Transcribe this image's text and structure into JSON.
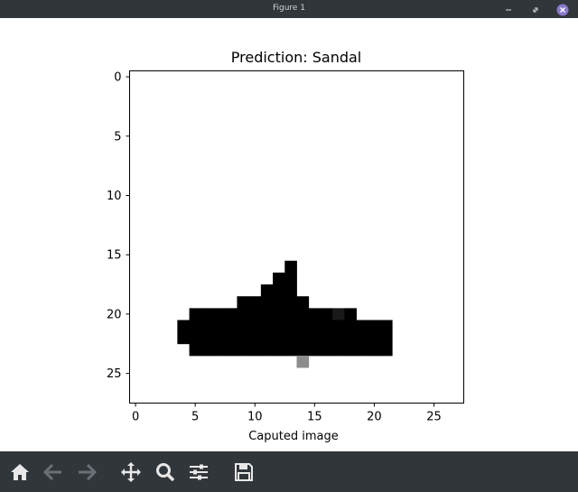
{
  "window": {
    "title": "Figure 1"
  },
  "toolbar": {
    "tools": [
      "home-icon",
      "back-arrow-icon",
      "forward-arrow-icon",
      "pan-move-icon",
      "zoom-magnifier-icon",
      "configure-subplots-icon",
      "save-disk-icon"
    ]
  },
  "colors": {
    "titlebar": "#31363b",
    "toolbar": "#31363b",
    "close": "#8a79c9"
  },
  "chart_data": {
    "type": "heatmap",
    "title": "Prediction: Sandal",
    "xlabel": "Caputed image",
    "ylabel": "",
    "xlim": [
      -0.5,
      27.5
    ],
    "ylim": [
      27.5,
      -0.5
    ],
    "xticks": [
      "0",
      "5",
      "10",
      "15",
      "20",
      "25"
    ],
    "yticks": [
      "0",
      "5",
      "10",
      "15",
      "20",
      "25"
    ],
    "colormap": "gray_r",
    "grid": false,
    "pixels": [
      {
        "row": 16,
        "col_start": 13,
        "col_end": 13,
        "value": 1.0
      },
      {
        "row": 17,
        "col_start": 12,
        "col_end": 13,
        "value": 1.0
      },
      {
        "row": 18,
        "col_start": 11,
        "col_end": 13,
        "value": 1.0
      },
      {
        "row": 19,
        "col_start": 9,
        "col_end": 14,
        "value": 1.0
      },
      {
        "row": 20,
        "col_start": 5,
        "col_end": 16,
        "value": 1.0
      },
      {
        "row": 20,
        "col_start": 17,
        "col_end": 17,
        "value": 0.9
      },
      {
        "row": 20,
        "col_start": 18,
        "col_end": 18,
        "value": 1.0
      },
      {
        "row": 21,
        "col_start": 4,
        "col_end": 21,
        "value": 1.0
      },
      {
        "row": 22,
        "col_start": 4,
        "col_end": 21,
        "value": 1.0
      },
      {
        "row": 23,
        "col_start": 5,
        "col_end": 21,
        "value": 1.0
      },
      {
        "row": 24,
        "col_start": 14,
        "col_end": 14,
        "value": 0.45
      }
    ]
  }
}
